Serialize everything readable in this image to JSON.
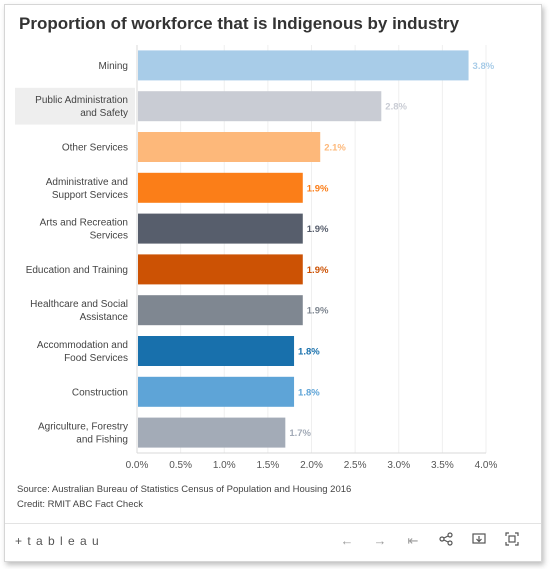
{
  "title": "Proportion of workforce that is Indigenous by industry",
  "source": "Source: Australian Bureau of Statistics Census of Population and Housing 2016",
  "credit": "Credit: RMIT ABC Fact Check",
  "toolbar": {
    "logo_text": "+ t a b l e a u",
    "icons": [
      "undo-icon",
      "redo-icon",
      "revert-icon",
      "share-icon",
      "download-icon",
      "fullscreen-icon"
    ]
  },
  "chart_data": {
    "type": "bar",
    "orientation": "horizontal",
    "categories": [
      [
        "Mining"
      ],
      [
        "Public Administration",
        "and Safety"
      ],
      [
        "Other Services"
      ],
      [
        "Administrative and",
        "Support Services"
      ],
      [
        "Arts and Recreation",
        "Services"
      ],
      [
        "Education and Training"
      ],
      [
        "Healthcare and Social",
        "Assistance"
      ],
      [
        "Accommodation and",
        "Food Services"
      ],
      [
        "Construction"
      ],
      [
        "Agriculture, Forestry",
        "and Fishing"
      ]
    ],
    "values": [
      3.8,
      2.8,
      2.1,
      1.9,
      1.9,
      1.9,
      1.9,
      1.8,
      1.8,
      1.7
    ],
    "value_labels": [
      "3.8%",
      "2.8%",
      "2.1%",
      "1.9%",
      "1.9%",
      "1.9%",
      "1.9%",
      "1.8%",
      "1.8%",
      "1.7%"
    ],
    "bar_colors": [
      "#a8cce8",
      "#c9ccd4",
      "#fdb87a",
      "#fb7e18",
      "#575e6c",
      "#cc5204",
      "#7f8791",
      "#1870ac",
      "#5ea4d7",
      "#a3abb7"
    ],
    "label_colors": [
      "#a8cce8",
      "#c9ccd4",
      "#fdb87a",
      "#fb7e18",
      "#575e6c",
      "#cc5204",
      "#7f8791",
      "#1870ac",
      "#5ea4d7",
      "#a3abb7"
    ],
    "highlighted_index": 1,
    "xlim": [
      0,
      4.0
    ],
    "xticks": [
      "0.0%",
      "0.5%",
      "1.0%",
      "1.5%",
      "2.0%",
      "2.5%",
      "3.0%",
      "3.5%",
      "4.0%"
    ],
    "xtick_values": [
      0,
      0.5,
      1.0,
      1.5,
      2.0,
      2.5,
      3.0,
      3.5,
      4.0
    ],
    "grid": true,
    "xlabel": "",
    "ylabel": ""
  }
}
